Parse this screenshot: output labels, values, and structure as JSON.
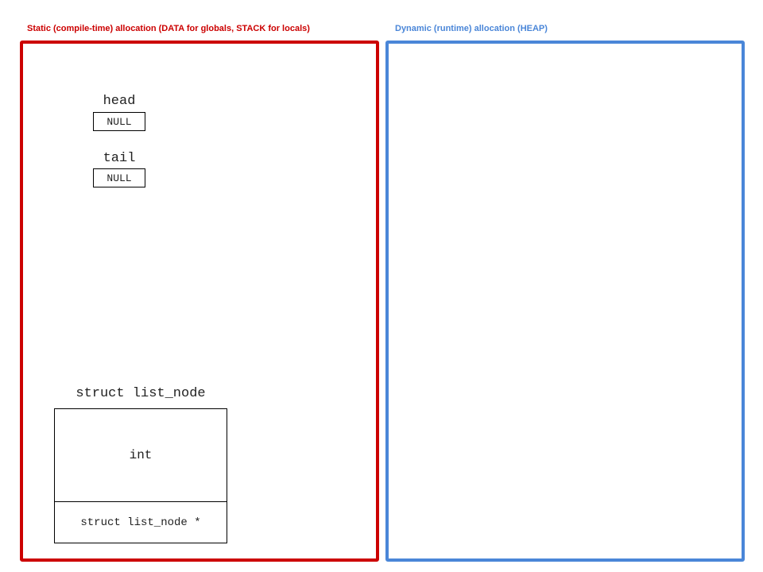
{
  "static_panel": {
    "title": "Static (compile-time) allocation (DATA for globals, STACK for locals)",
    "border_color": "#cc0000",
    "variables": [
      {
        "name": "head",
        "value": "NULL"
      },
      {
        "name": "tail",
        "value": "NULL"
      }
    ],
    "struct": {
      "title": "struct list_node",
      "fields": [
        "int",
        "struct list_node *"
      ]
    }
  },
  "heap_panel": {
    "title": "Dynamic (runtime) allocation (HEAP)",
    "border_color": "#4a86d8"
  }
}
